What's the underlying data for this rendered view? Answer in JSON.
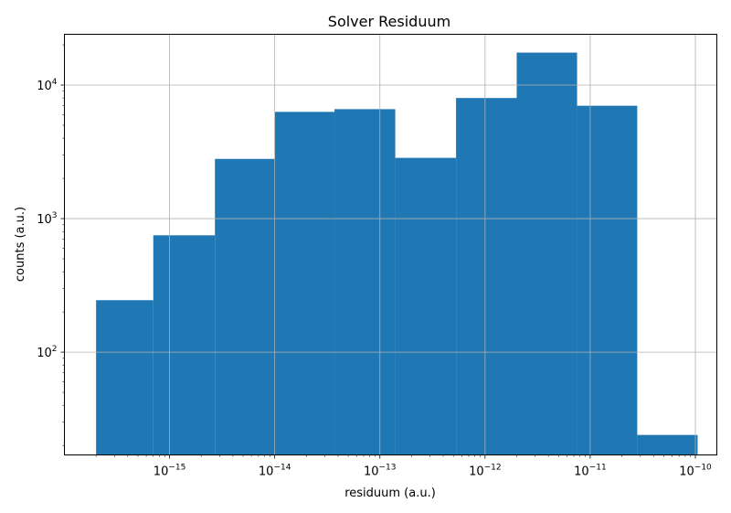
{
  "chart_data": {
    "type": "bar",
    "title": "Solver Residuum",
    "xlabel": "residuum (a.u.)",
    "ylabel": "counts (a.u.)",
    "x_scale": "log",
    "y_scale": "log",
    "xlim": [
      1e-16,
      1.6e-10
    ],
    "ylim": [
      17,
      24000
    ],
    "grid": true,
    "bar_color": "#1f77b4",
    "bin_edges": [
      2e-16,
      7e-16,
      2.7e-15,
      1e-14,
      3.7e-14,
      1.4e-13,
      5.3e-13,
      2e-12,
      7.5e-12,
      2.8e-11,
      1.05e-10
    ],
    "counts": [
      245,
      750,
      2800,
      6300,
      6600,
      2850,
      8000,
      17500,
      7000,
      24
    ],
    "x_ticks": [
      {
        "value": 1e-15,
        "base": "10",
        "exp": "−15"
      },
      {
        "value": 1e-14,
        "base": "10",
        "exp": "−14"
      },
      {
        "value": 1e-13,
        "base": "10",
        "exp": "−13"
      },
      {
        "value": 1e-12,
        "base": "10",
        "exp": "−12"
      },
      {
        "value": 1e-11,
        "base": "10",
        "exp": "−11"
      },
      {
        "value": 1e-10,
        "base": "10",
        "exp": "−10"
      }
    ],
    "y_ticks": [
      {
        "value": 100,
        "base": "10",
        "exp": "2"
      },
      {
        "value": 1000,
        "base": "10",
        "exp": "3"
      },
      {
        "value": 10000,
        "base": "10",
        "exp": "4"
      }
    ]
  }
}
